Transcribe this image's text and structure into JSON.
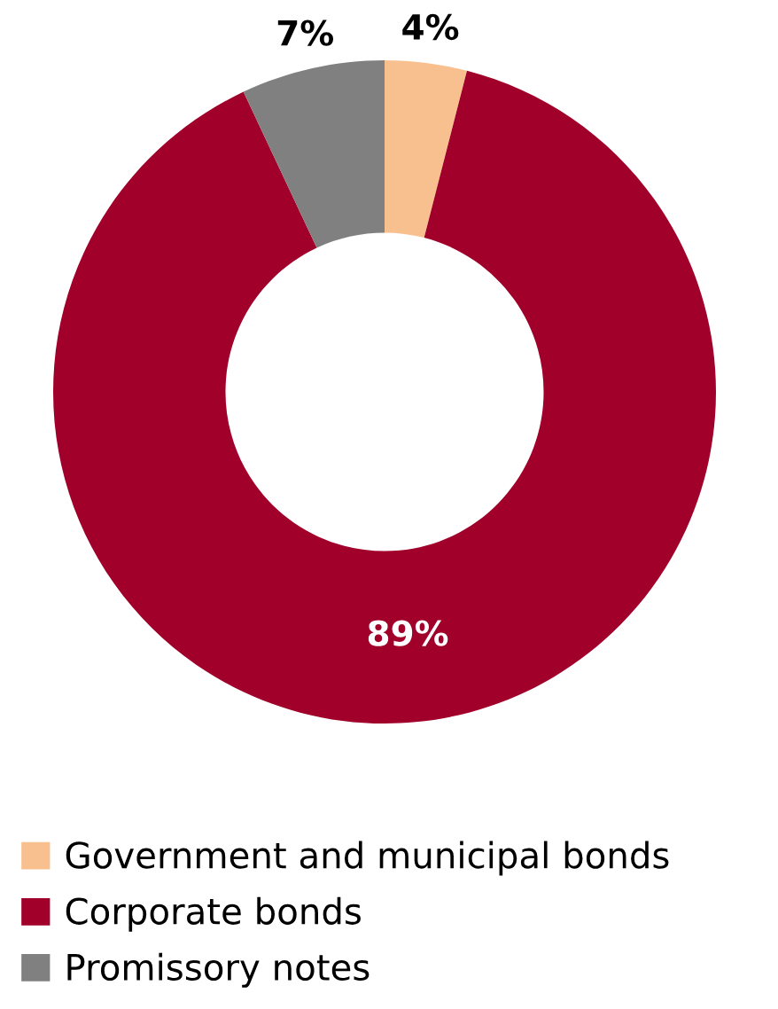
{
  "chart_data": {
    "type": "donut",
    "categories": [
      "Government and municipal bonds",
      "Corporate bonds",
      "Promissory notes"
    ],
    "values": [
      4,
      89,
      7
    ],
    "colors": [
      "#f9c08f",
      "#a0002a",
      "#808080"
    ],
    "value_labels": [
      "4%",
      "89%",
      "7%"
    ],
    "legend": "bottom left"
  }
}
